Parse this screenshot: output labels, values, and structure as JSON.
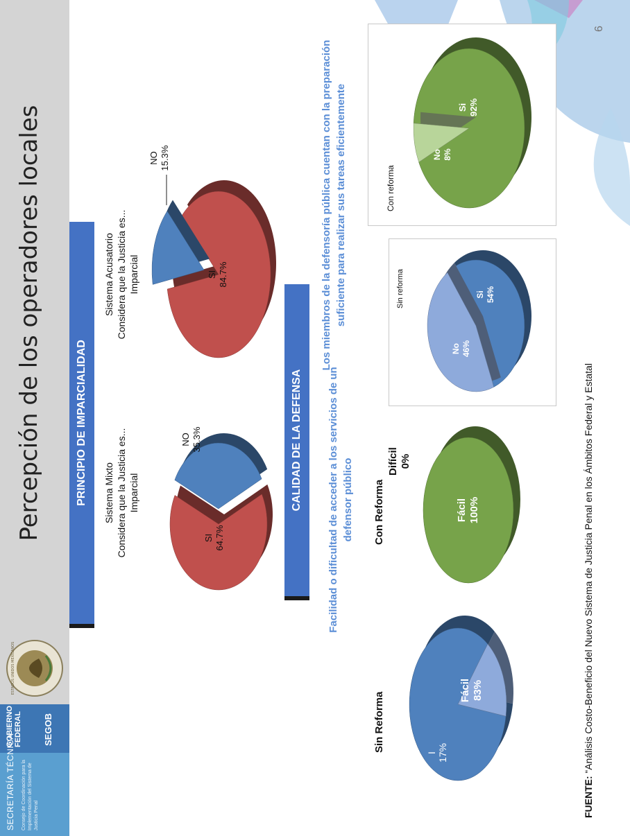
{
  "header": {
    "brand_line1": "SECRETARÍA TÉCNICA",
    "brand_line2": "Consejo de Coordinación para la Implementación del Sistema de Justicia Penal",
    "brand_line3": "GOBIERNO FEDERAL",
    "brand_line4": "SEGOB",
    "seal_text": "ESTADOS UNIDOS MEXICANOS",
    "title": "Percepción de los operadores locales"
  },
  "section1": {
    "banner": "PRINCIPIO DE IMPARCIALIDAD",
    "chart_a": {
      "title_line1": "Sistema Mixto",
      "title_line2": "Considera que la Justicia es...",
      "title_line3": "Imparcial",
      "si_label": "SI",
      "si_value": "64.7%",
      "no_label": "NO",
      "no_value": "35.3%"
    },
    "chart_b": {
      "title_line1": "Sistema Acusatorio",
      "title_line2": "Considera que la Justicia es...",
      "title_line3": "Imparcial",
      "si_label": "SI",
      "si_value": "84.7%",
      "no_label": "NO",
      "no_value": "15.3%"
    }
  },
  "section2": {
    "banner": "CALIDAD DE LA DEFENSA",
    "left_heading": "Facilidad o dificultad de acceder a los servicios de un defensor público",
    "right_heading": "Los miembros de la defensoría pública cuentan con la preparación suficiente para realizar sus tareas eficientemente",
    "chart_c": {
      "title": "Sin Reforma",
      "facil_label": "Fácil",
      "facil_value": "83%",
      "i_label": "I",
      "i_value": "17%"
    },
    "chart_d": {
      "title": "Con Reforma",
      "facil_label": "Fácil",
      "facil_value": "100%",
      "dificil_label": "Difícil",
      "dificil_value": "0%"
    },
    "chart_e": {
      "title": "Sin reforma",
      "si_label": "Si",
      "si_value": "54%",
      "no_label": "No",
      "no_value": "46%"
    },
    "chart_f": {
      "title": "Con reforma",
      "si_label": "Si",
      "si_value": "92%",
      "no_label": "No",
      "no_value": "8%"
    }
  },
  "footer": {
    "source_label": "FUENTE:",
    "source_text": " “Análisis Costo-Beneficio del Nuevo Sistema de Justicia Penal en los Ámbitos Federal y Estatal",
    "page_number": "6"
  },
  "colors": {
    "red": "#c0504d",
    "blue": "#4f81bd",
    "light_blue": "#8eaadb",
    "green": "#77a34a",
    "light_green": "#b8d59a",
    "banner": "#4472c4"
  },
  "chart_data": [
    {
      "type": "pie",
      "title": "Sistema Mixto",
      "categories": [
        "SI",
        "NO"
      ],
      "values": [
        64.7,
        35.3
      ]
    },
    {
      "type": "pie",
      "title": "Sistema Acusatorio",
      "categories": [
        "SI",
        "NO"
      ],
      "values": [
        84.7,
        15.3
      ]
    },
    {
      "type": "pie",
      "title": "Sin Reforma",
      "categories": [
        "Fácil",
        "I"
      ],
      "values": [
        83,
        17
      ]
    },
    {
      "type": "pie",
      "title": "Con Reforma",
      "categories": [
        "Fácil",
        "Difícil"
      ],
      "values": [
        100,
        0
      ]
    },
    {
      "type": "pie",
      "title": "Sin reforma",
      "categories": [
        "Si",
        "No"
      ],
      "values": [
        54,
        46
      ]
    },
    {
      "type": "pie",
      "title": "Con reforma",
      "categories": [
        "Si",
        "No"
      ],
      "values": [
        92,
        8
      ]
    }
  ]
}
